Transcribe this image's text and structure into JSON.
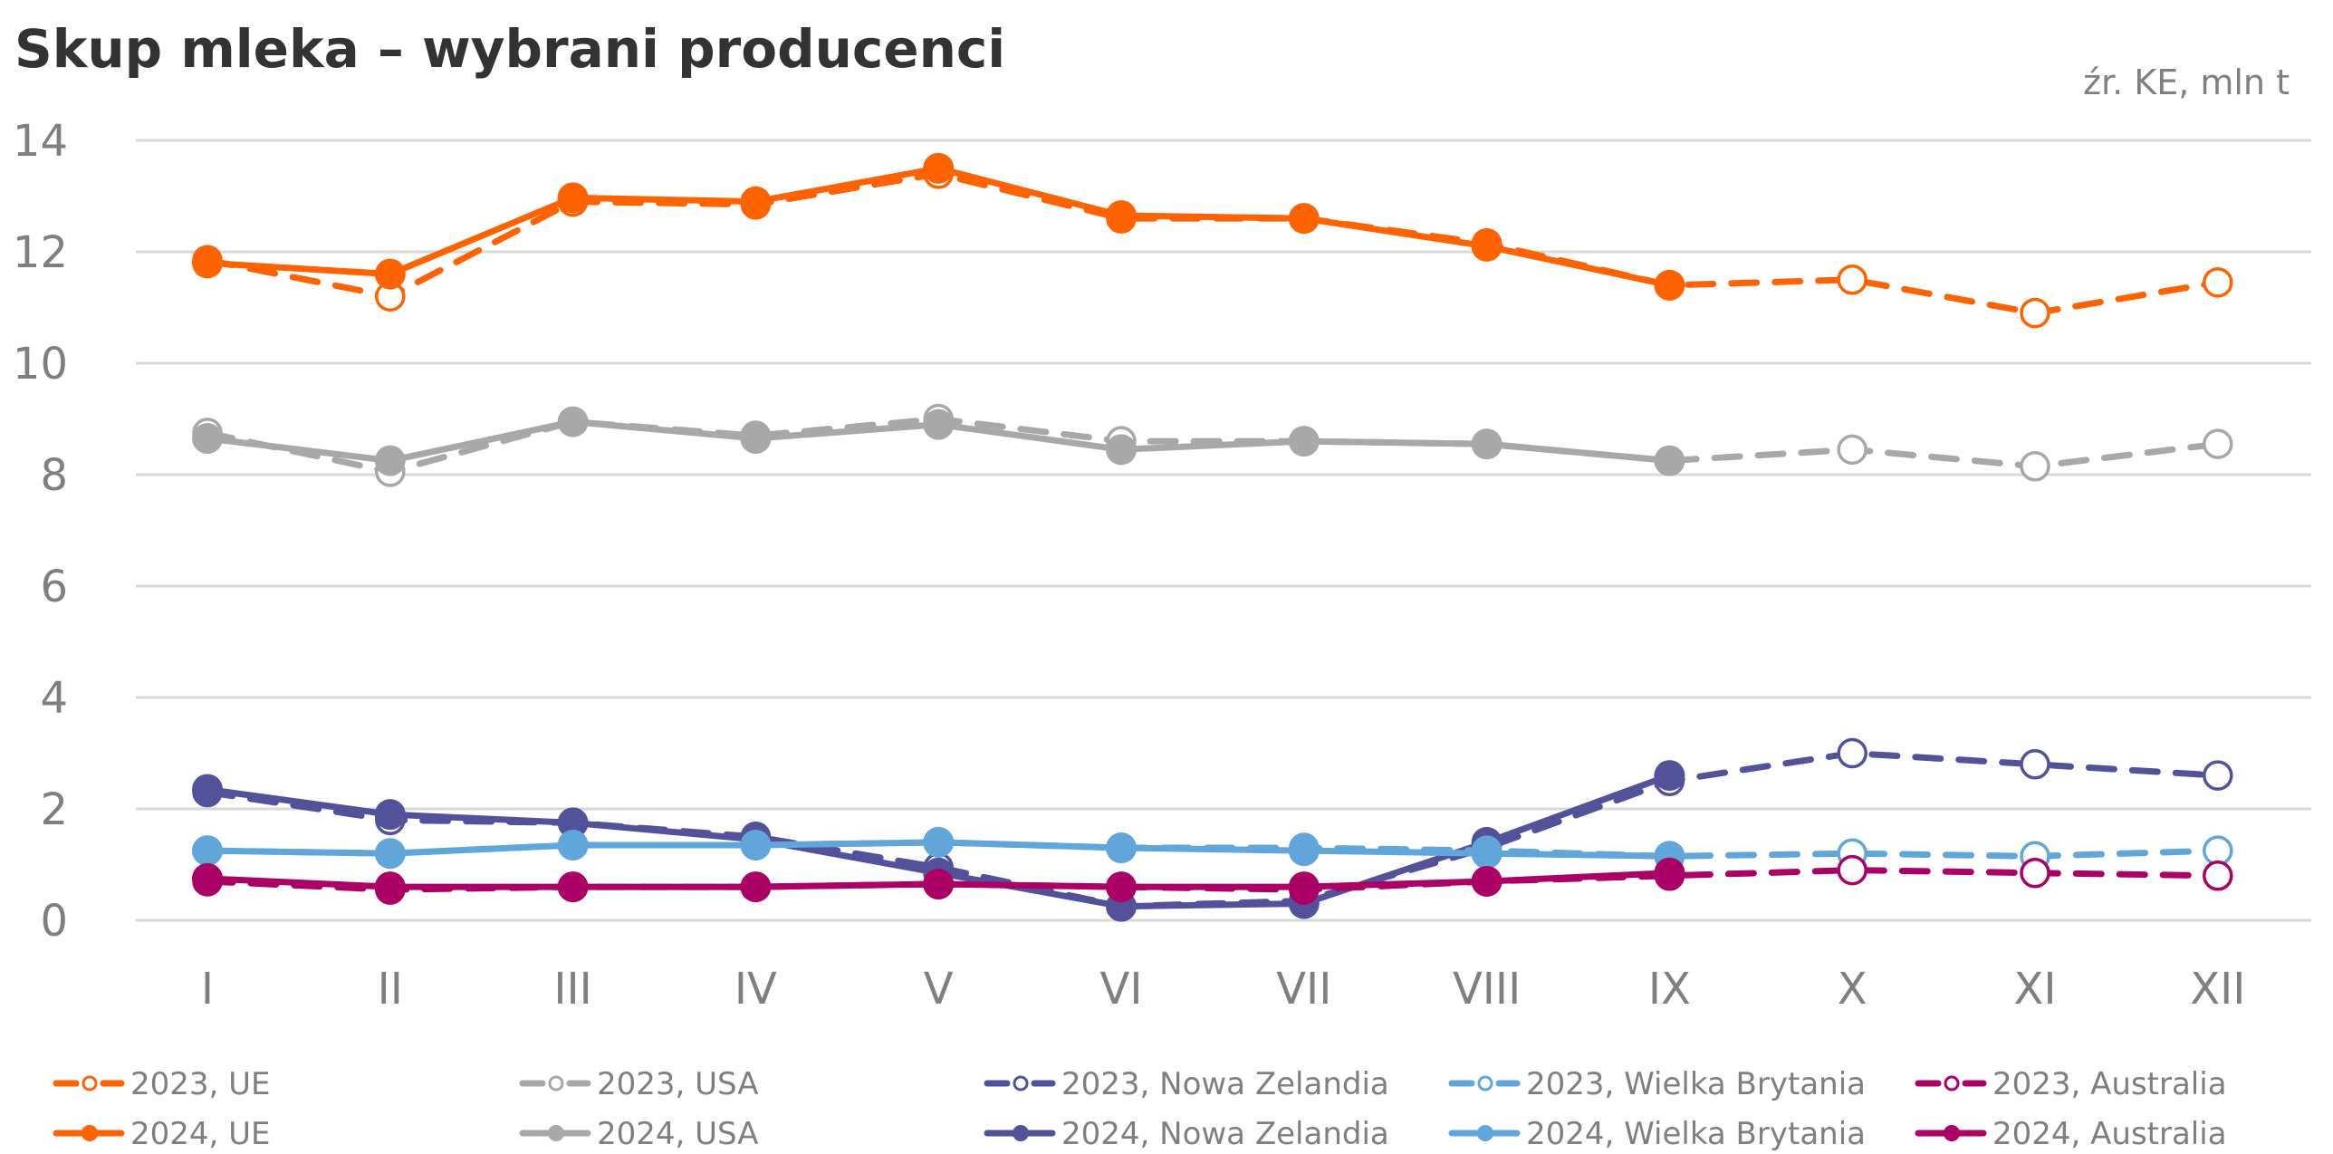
{
  "chart_data": {
    "type": "line",
    "title": "Skup mleka – wybrani producenci",
    "source_note": "źr. KE, mln t",
    "xlabel": "",
    "ylabel": "",
    "ylim": [
      0,
      14
    ],
    "yticks": [
      0,
      2,
      4,
      6,
      8,
      10,
      12,
      14
    ],
    "grid": true,
    "legend_position": "bottom",
    "categories": [
      "I",
      "II",
      "III",
      "IV",
      "V",
      "VI",
      "VII",
      "VIII",
      "IX",
      "X",
      "XI",
      "XII"
    ],
    "series": [
      {
        "name": "2023, UE",
        "color": "#ff6200",
        "style": "dashed",
        "marker": "open-circle",
        "values": [
          11.85,
          11.2,
          12.9,
          12.85,
          13.4,
          12.6,
          12.6,
          12.15,
          11.4,
          11.5,
          10.9,
          11.45
        ]
      },
      {
        "name": "2023, USA",
        "color": "#a8a8a8",
        "style": "dashed",
        "marker": "open-circle",
        "values": [
          8.75,
          8.05,
          8.95,
          8.7,
          9.0,
          8.6,
          8.6,
          8.55,
          8.25,
          8.45,
          8.15,
          8.55
        ]
      },
      {
        "name": "2023, Nowa Zelandia",
        "color": "#525199",
        "style": "dashed",
        "marker": "open-circle",
        "values": [
          2.3,
          1.8,
          1.75,
          1.5,
          0.95,
          0.25,
          0.35,
          1.3,
          2.5,
          3.0,
          2.8,
          2.6
        ]
      },
      {
        "name": "2023, Wielka Brytania",
        "color": "#60a6da",
        "style": "dashed",
        "marker": "open-circle",
        "values": [
          1.25,
          1.2,
          1.35,
          1.35,
          1.4,
          1.3,
          1.3,
          1.25,
          1.15,
          1.2,
          1.15,
          1.25
        ]
      },
      {
        "name": "2023, Australia",
        "color": "#ab0066",
        "style": "dashed",
        "marker": "open-circle",
        "values": [
          0.7,
          0.55,
          0.6,
          0.6,
          0.65,
          0.6,
          0.55,
          0.7,
          0.8,
          0.9,
          0.85,
          0.8
        ]
      },
      {
        "name": "2024, UE",
        "color": "#ff6200",
        "style": "solid",
        "marker": "filled-circle",
        "values": [
          11.8,
          11.6,
          12.97,
          12.9,
          13.5,
          12.65,
          12.6,
          12.1,
          11.4,
          null,
          null,
          null
        ]
      },
      {
        "name": "2024, USA",
        "color": "#a8a8a8",
        "style": "solid",
        "marker": "filled-circle",
        "values": [
          8.65,
          8.25,
          8.95,
          8.65,
          8.9,
          8.45,
          8.6,
          8.55,
          8.25,
          null,
          null,
          null
        ]
      },
      {
        "name": "2024, Nowa Zelandia",
        "color": "#525199",
        "style": "solid",
        "marker": "filled-circle",
        "values": [
          2.35,
          1.9,
          1.75,
          1.45,
          0.85,
          0.25,
          0.3,
          1.4,
          2.6,
          null,
          null,
          null
        ]
      },
      {
        "name": "2024, Wielka Brytania",
        "color": "#60a6da",
        "style": "solid",
        "marker": "filled-circle",
        "values": [
          1.25,
          1.2,
          1.35,
          1.35,
          1.4,
          1.3,
          1.25,
          1.2,
          1.15,
          null,
          null,
          null
        ]
      },
      {
        "name": "2024, Australia",
        "color": "#ab0066",
        "style": "solid",
        "marker": "filled-circle",
        "values": [
          0.75,
          0.6,
          0.6,
          0.6,
          0.65,
          0.6,
          0.6,
          0.7,
          0.85,
          null,
          null,
          null
        ]
      }
    ],
    "legend": [
      [
        "2023, UE",
        "2023, USA",
        "2023, Nowa Zelandia",
        "2023, Wielka Brytania",
        "2023, Australia"
      ],
      [
        "2024, UE",
        "2024, USA",
        "2024, Nowa Zelandia",
        "2024, Wielka Brytania",
        "2024, Australia"
      ]
    ]
  }
}
